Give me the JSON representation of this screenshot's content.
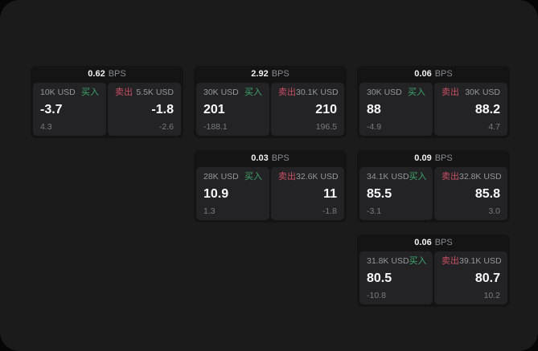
{
  "unit_label": "BPS",
  "side_labels": {
    "buy": "买入",
    "sell": "卖出"
  },
  "colors": {
    "page_bg": "#1b1b1c",
    "card_bg": "#141415",
    "panel_bg": "#232326",
    "buy_green": "#3ea66a",
    "sell_red": "#c94f62"
  },
  "cards": [
    {
      "bps": "0.62",
      "buy": {
        "amount": "10K USD",
        "value": "-3.7",
        "sub": "4.3"
      },
      "sell": {
        "amount": "5.5K USD",
        "value": "-1.8",
        "sub": "-2.6"
      }
    },
    {
      "bps": "2.92",
      "buy": {
        "amount": "30K USD",
        "value": "201",
        "sub": "-188.1"
      },
      "sell": {
        "amount": "30.1K USD",
        "value": "210",
        "sub": "196.5"
      }
    },
    {
      "bps": "0.06",
      "buy": {
        "amount": "30K USD",
        "value": "88",
        "sub": "-4.9"
      },
      "sell": {
        "amount": "30K USD",
        "value": "88.2",
        "sub": "4.7"
      }
    },
    {
      "bps": "0.03",
      "buy": {
        "amount": "28K USD",
        "value": "10.9",
        "sub": "1.3"
      },
      "sell": {
        "amount": "32.6K USD",
        "value": "11",
        "sub": "-1.8"
      }
    },
    {
      "bps": "0.09",
      "buy": {
        "amount": "34.1K USD",
        "value": "85.5",
        "sub": "-3.1"
      },
      "sell": {
        "amount": "32.8K USD",
        "value": "85.8",
        "sub": "3.0"
      }
    },
    {
      "bps": "0.06",
      "buy": {
        "amount": "31.8K USD",
        "value": "80.5",
        "sub": "-10.8"
      },
      "sell": {
        "amount": "39.1K USD",
        "value": "80.7",
        "sub": "10.2"
      }
    }
  ]
}
